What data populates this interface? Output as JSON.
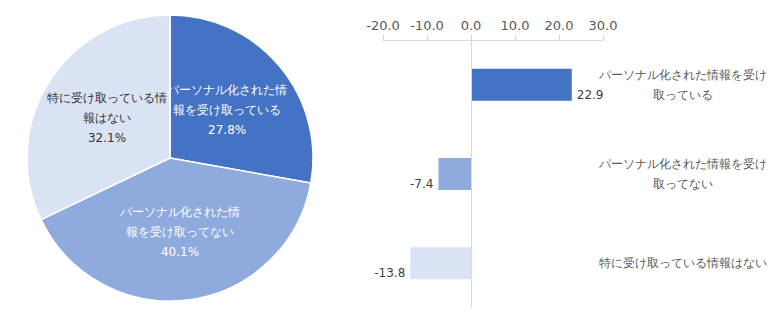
{
  "chart_data": [
    {
      "type": "pie",
      "categories": [
        "パーソナル化された情報を受け取っている",
        "パーソナル化された情報を受け取ってない",
        "特に受け取っている情報はない"
      ],
      "values": [
        27.8,
        40.1,
        32.1
      ],
      "value_labels": [
        "27.8%",
        "40.1%",
        "32.1%"
      ],
      "colors": [
        "#4472c4",
        "#8faadc",
        "#dae3f3"
      ],
      "data_labels": true
    },
    {
      "type": "bar",
      "orientation": "horizontal",
      "categories": [
        "パーソナル化された情報を受け取っている",
        "パーソナル化された情報を受け取ってない",
        "特に受け取っている情報はない"
      ],
      "values": [
        22.9,
        -7.4,
        -13.8
      ],
      "colors": [
        "#4472c4",
        "#8faadc",
        "#dae3f3"
      ],
      "xlim": [
        -20,
        30
      ],
      "xticks": [
        {
          "value": -20,
          "label": "-20.0"
        },
        {
          "value": -10,
          "label": "-10.0"
        },
        {
          "value": 0,
          "label": "0.0"
        },
        {
          "value": 10,
          "label": "10.0"
        },
        {
          "value": 20,
          "label": "20.0"
        },
        {
          "value": 30,
          "label": "30.0"
        }
      ],
      "grid": false,
      "data_labels": true
    }
  ]
}
